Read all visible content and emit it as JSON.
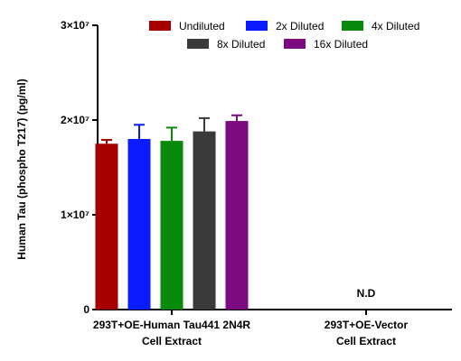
{
  "chart_data": {
    "type": "bar",
    "ylabel": "Human Tau (phospho T217) (pg/ml)",
    "ylim": [
      0,
      30000000
    ],
    "yticks": [
      {
        "value": 0,
        "label": "0"
      },
      {
        "value": 10000000,
        "label": "1×10⁷"
      },
      {
        "value": 20000000,
        "label": "2×10⁷"
      },
      {
        "value": 30000000,
        "label": "3×10⁷"
      }
    ],
    "categories": [
      {
        "line1": "293T+OE-Human Tau441 2N4R",
        "line2": "Cell Extract"
      },
      {
        "line1": "293T+OE-Vector",
        "line2": "Cell Extract"
      }
    ],
    "series": [
      {
        "name": "Undiluted",
        "color": "#a80000",
        "values": [
          17500000,
          null
        ],
        "errors": [
          400000,
          null
        ]
      },
      {
        "name": "2x Diluted",
        "color": "#0a1cff",
        "values": [
          18000000,
          null
        ],
        "errors": [
          1500000,
          null
        ]
      },
      {
        "name": "4x Diluted",
        "color": "#0a8a0a",
        "values": [
          17800000,
          null
        ],
        "errors": [
          1400000,
          null
        ]
      },
      {
        "name": "8x Diluted",
        "color": "#3a3a3a",
        "values": [
          18800000,
          null
        ],
        "errors": [
          1400000,
          null
        ]
      },
      {
        "name": "16x Diluted",
        "color": "#7d0a80",
        "values": [
          19900000,
          null
        ],
        "errors": [
          600000,
          null
        ]
      }
    ],
    "annotations": [
      {
        "category": 1,
        "text": "N.D"
      }
    ],
    "grid": false,
    "legend": "top"
  }
}
